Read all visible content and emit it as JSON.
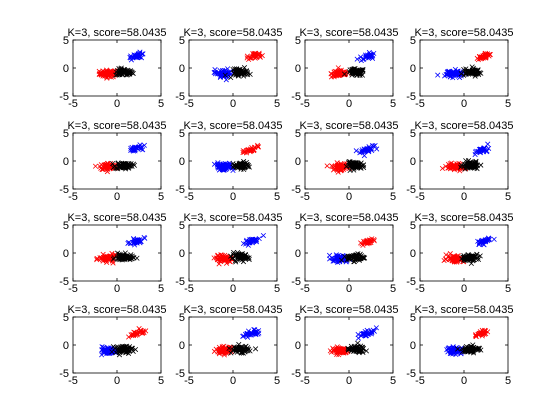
{
  "figure": {
    "background": "#ffffff",
    "subplot_count": 16
  },
  "chart_data": [
    {
      "type": "scatter",
      "title": "K=3, score=58.0435",
      "xticks": [
        -5,
        0,
        5
      ],
      "yticks": [
        -5,
        0,
        5
      ],
      "xlim": [
        -5,
        5
      ],
      "ylim": [
        -5,
        5
      ],
      "grid": false,
      "marker": "x",
      "series": [
        {
          "color": "#ff0000",
          "cx": -1,
          "cy": -1,
          "spread": 0.9,
          "count": 60
        },
        {
          "color": "#000000",
          "cx": 0.8,
          "cy": -0.8,
          "spread": 0.9,
          "count": 60
        },
        {
          "color": "#0000ff",
          "cx": 2,
          "cy": 2,
          "spread": 0.7,
          "count": 30
        }
      ]
    },
    {
      "type": "scatter",
      "title": "K=3, score=58.0435",
      "xticks": [
        -5,
        0,
        5
      ],
      "yticks": [
        -5,
        0,
        5
      ],
      "xlim": [
        -5,
        5
      ],
      "ylim": [
        -5,
        5
      ],
      "grid": false,
      "marker": "x",
      "series": [
        {
          "color": "#0000ff",
          "cx": -1,
          "cy": -1,
          "spread": 0.9,
          "count": 60
        },
        {
          "color": "#000000",
          "cx": 0.8,
          "cy": -0.8,
          "spread": 0.9,
          "count": 60
        },
        {
          "color": "#ff0000",
          "cx": 2,
          "cy": 2,
          "spread": 0.7,
          "count": 30
        }
      ]
    },
    {
      "type": "scatter",
      "title": "K=3, score=58.0435",
      "xticks": [
        -5,
        0,
        5
      ],
      "yticks": [
        -5,
        0,
        5
      ],
      "xlim": [
        -5,
        5
      ],
      "ylim": [
        -5,
        5
      ],
      "grid": false,
      "marker": "x",
      "series": [
        {
          "color": "#ff0000",
          "cx": -1,
          "cy": -1,
          "spread": 0.9,
          "count": 60
        },
        {
          "color": "#000000",
          "cx": 0.8,
          "cy": -0.8,
          "spread": 0.9,
          "count": 60
        },
        {
          "color": "#0000ff",
          "cx": 2,
          "cy": 2,
          "spread": 0.7,
          "count": 30
        }
      ]
    },
    {
      "type": "scatter",
      "title": "K=3, score=58.0435",
      "xticks": [
        -5,
        0,
        5
      ],
      "yticks": [
        -5,
        0,
        5
      ],
      "xlim": [
        -5,
        5
      ],
      "ylim": [
        -5,
        5
      ],
      "grid": false,
      "marker": "x",
      "series": [
        {
          "color": "#0000ff",
          "cx": -1,
          "cy": -1,
          "spread": 0.9,
          "count": 60
        },
        {
          "color": "#000000",
          "cx": 0.8,
          "cy": -0.8,
          "spread": 0.9,
          "count": 60
        },
        {
          "color": "#ff0000",
          "cx": 2,
          "cy": 2,
          "spread": 0.7,
          "count": 30
        }
      ]
    },
    {
      "type": "scatter",
      "title": "K=3, score=58.0435",
      "xticks": [
        -5,
        0,
        5
      ],
      "yticks": [
        -5,
        0,
        5
      ],
      "xlim": [
        -5,
        5
      ],
      "ylim": [
        -5,
        5
      ],
      "grid": false,
      "marker": "x",
      "series": [
        {
          "color": "#ff0000",
          "cx": -1,
          "cy": -1,
          "spread": 0.9,
          "count": 60
        },
        {
          "color": "#000000",
          "cx": 0.8,
          "cy": -0.8,
          "spread": 0.9,
          "count": 60
        },
        {
          "color": "#0000ff",
          "cx": 2,
          "cy": 2,
          "spread": 0.7,
          "count": 30
        }
      ]
    },
    {
      "type": "scatter",
      "title": "K=3, score=58.0435",
      "xticks": [
        -5,
        0,
        5
      ],
      "yticks": [
        -5,
        0,
        5
      ],
      "xlim": [
        -5,
        5
      ],
      "ylim": [
        -5,
        5
      ],
      "grid": false,
      "marker": "x",
      "series": [
        {
          "color": "#0000ff",
          "cx": -1,
          "cy": -1,
          "spread": 0.9,
          "count": 60
        },
        {
          "color": "#000000",
          "cx": 0.8,
          "cy": -0.8,
          "spread": 0.9,
          "count": 60
        },
        {
          "color": "#ff0000",
          "cx": 2,
          "cy": 2,
          "spread": 0.7,
          "count": 30
        }
      ]
    },
    {
      "type": "scatter",
      "title": "K=3, score=58.0435",
      "xticks": [
        -5,
        0,
        5
      ],
      "yticks": [
        -5,
        0,
        5
      ],
      "xlim": [
        -5,
        5
      ],
      "ylim": [
        -5,
        5
      ],
      "grid": false,
      "marker": "x",
      "series": [
        {
          "color": "#ff0000",
          "cx": -1,
          "cy": -1,
          "spread": 0.9,
          "count": 60
        },
        {
          "color": "#000000",
          "cx": 0.8,
          "cy": -0.8,
          "spread": 0.9,
          "count": 60
        },
        {
          "color": "#0000ff",
          "cx": 2,
          "cy": 2,
          "spread": 0.7,
          "count": 30
        }
      ]
    },
    {
      "type": "scatter",
      "title": "K=3, score=58.0435",
      "xticks": [
        -5,
        0,
        5
      ],
      "yticks": [
        -5,
        0,
        5
      ],
      "xlim": [
        -5,
        5
      ],
      "ylim": [
        -5,
        5
      ],
      "grid": false,
      "marker": "x",
      "series": [
        {
          "color": "#ff0000",
          "cx": -1,
          "cy": -1,
          "spread": 0.9,
          "count": 60
        },
        {
          "color": "#000000",
          "cx": 0.8,
          "cy": -0.8,
          "spread": 0.9,
          "count": 60
        },
        {
          "color": "#0000ff",
          "cx": 2,
          "cy": 2,
          "spread": 0.7,
          "count": 30
        }
      ]
    },
    {
      "type": "scatter",
      "title": "K=3, score=58.0435",
      "xticks": [
        -5,
        0,
        5
      ],
      "yticks": [
        -5,
        0,
        5
      ],
      "xlim": [
        -5,
        5
      ],
      "ylim": [
        -5,
        5
      ],
      "grid": false,
      "marker": "x",
      "series": [
        {
          "color": "#ff0000",
          "cx": -1,
          "cy": -1,
          "spread": 0.9,
          "count": 60
        },
        {
          "color": "#000000",
          "cx": 0.8,
          "cy": -0.8,
          "spread": 0.9,
          "count": 60
        },
        {
          "color": "#0000ff",
          "cx": 2,
          "cy": 2,
          "spread": 0.7,
          "count": 30
        }
      ]
    },
    {
      "type": "scatter",
      "title": "K=3, score=58.0435",
      "xticks": [
        -5,
        0,
        5
      ],
      "yticks": [
        -5,
        0,
        5
      ],
      "xlim": [
        -5,
        5
      ],
      "ylim": [
        -5,
        5
      ],
      "grid": false,
      "marker": "x",
      "series": [
        {
          "color": "#ff0000",
          "cx": -1,
          "cy": -1,
          "spread": 0.9,
          "count": 60
        },
        {
          "color": "#000000",
          "cx": 0.8,
          "cy": -0.8,
          "spread": 0.9,
          "count": 60
        },
        {
          "color": "#0000ff",
          "cx": 2,
          "cy": 2,
          "spread": 0.7,
          "count": 30
        }
      ]
    },
    {
      "type": "scatter",
      "title": "K=3, score=58.0435",
      "xticks": [
        -5,
        0,
        5
      ],
      "yticks": [
        -5,
        0,
        5
      ],
      "xlim": [
        -5,
        5
      ],
      "ylim": [
        -5,
        5
      ],
      "grid": false,
      "marker": "x",
      "series": [
        {
          "color": "#0000ff",
          "cx": -1,
          "cy": -1,
          "spread": 0.9,
          "count": 60
        },
        {
          "color": "#000000",
          "cx": 0.8,
          "cy": -0.8,
          "spread": 0.9,
          "count": 60
        },
        {
          "color": "#ff0000",
          "cx": 2,
          "cy": 2,
          "spread": 0.7,
          "count": 30
        }
      ]
    },
    {
      "type": "scatter",
      "title": "K=3, score=58.0435",
      "xticks": [
        -5,
        0,
        5
      ],
      "yticks": [
        -5,
        0,
        5
      ],
      "xlim": [
        -5,
        5
      ],
      "ylim": [
        -5,
        5
      ],
      "grid": false,
      "marker": "x",
      "series": [
        {
          "color": "#ff0000",
          "cx": -1,
          "cy": -1,
          "spread": 0.9,
          "count": 60
        },
        {
          "color": "#000000",
          "cx": 0.8,
          "cy": -0.8,
          "spread": 0.9,
          "count": 60
        },
        {
          "color": "#0000ff",
          "cx": 2,
          "cy": 2,
          "spread": 0.7,
          "count": 30
        }
      ]
    },
    {
      "type": "scatter",
      "title": "K=3, score=58.0435",
      "xticks": [
        -5,
        0,
        5
      ],
      "yticks": [
        -5,
        0,
        5
      ],
      "xlim": [
        -5,
        5
      ],
      "ylim": [
        -5,
        5
      ],
      "grid": false,
      "marker": "x",
      "series": [
        {
          "color": "#0000ff",
          "cx": -1,
          "cy": -1,
          "spread": 0.9,
          "count": 60
        },
        {
          "color": "#000000",
          "cx": 0.8,
          "cy": -0.8,
          "spread": 0.9,
          "count": 60
        },
        {
          "color": "#ff0000",
          "cx": 2,
          "cy": 2,
          "spread": 0.7,
          "count": 30
        }
      ]
    },
    {
      "type": "scatter",
      "title": "K=3, score=58.0435",
      "xticks": [
        -5,
        0,
        5
      ],
      "yticks": [
        -5,
        0,
        5
      ],
      "xlim": [
        -5,
        5
      ],
      "ylim": [
        -5,
        5
      ],
      "grid": false,
      "marker": "x",
      "series": [
        {
          "color": "#ff0000",
          "cx": -1,
          "cy": -1,
          "spread": 0.9,
          "count": 60
        },
        {
          "color": "#000000",
          "cx": 0.8,
          "cy": -0.8,
          "spread": 0.9,
          "count": 60
        },
        {
          "color": "#0000ff",
          "cx": 2,
          "cy": 2,
          "spread": 0.7,
          "count": 30
        }
      ]
    },
    {
      "type": "scatter",
      "title": "K=3, score=58.0435",
      "xticks": [
        -5,
        0,
        5
      ],
      "yticks": [
        -5,
        0,
        5
      ],
      "xlim": [
        -5,
        5
      ],
      "ylim": [
        -5,
        5
      ],
      "grid": false,
      "marker": "x",
      "series": [
        {
          "color": "#ff0000",
          "cx": -1,
          "cy": -1,
          "spread": 0.9,
          "count": 60
        },
        {
          "color": "#000000",
          "cx": 0.8,
          "cy": -0.8,
          "spread": 0.9,
          "count": 60
        },
        {
          "color": "#0000ff",
          "cx": 2,
          "cy": 2,
          "spread": 0.7,
          "count": 30
        }
      ]
    },
    {
      "type": "scatter",
      "title": "K=3, score=58.0435",
      "xticks": [
        -5,
        0,
        5
      ],
      "yticks": [
        -5,
        0,
        5
      ],
      "xlim": [
        -5,
        5
      ],
      "ylim": [
        -5,
        5
      ],
      "grid": false,
      "marker": "x",
      "series": [
        {
          "color": "#0000ff",
          "cx": -1,
          "cy": -1,
          "spread": 0.9,
          "count": 60
        },
        {
          "color": "#000000",
          "cx": 0.8,
          "cy": -0.8,
          "spread": 0.9,
          "count": 60
        },
        {
          "color": "#ff0000",
          "cx": 2,
          "cy": 2,
          "spread": 0.7,
          "count": 30
        }
      ]
    }
  ]
}
